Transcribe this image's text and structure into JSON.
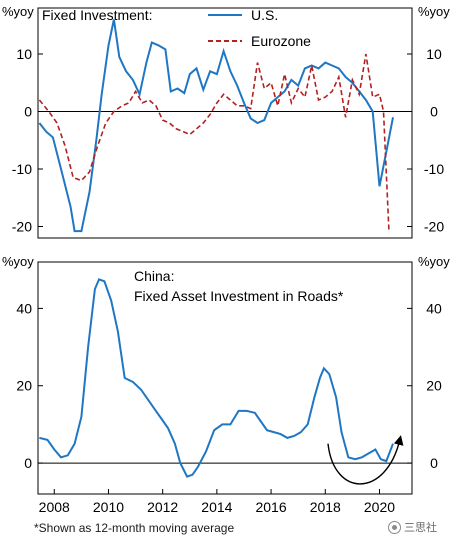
{
  "chart_data": [
    {
      "type": "line",
      "title": "Fixed Investment:",
      "ylabel_left": "%yoy",
      "ylabel_right": "%yoy",
      "ylim": [
        -22,
        18
      ],
      "yticks": [
        -20,
        -10,
        0,
        10
      ],
      "xlim": [
        2007.4,
        2021.2
      ],
      "legend": "top-center",
      "series": [
        {
          "name": "U.S.",
          "style": "solid",
          "color": "#1f77c4",
          "x": [
            2007.45,
            2007.7,
            2007.95,
            2008.25,
            2008.6,
            2008.75,
            2009.0,
            2009.3,
            2009.55,
            2009.75,
            2010.0,
            2010.2,
            2010.4,
            2010.65,
            2010.9,
            2011.15,
            2011.4,
            2011.6,
            2011.85,
            2012.1,
            2012.3,
            2012.55,
            2012.8,
            2013.0,
            2013.25,
            2013.5,
            2013.75,
            2014.0,
            2014.25,
            2014.5,
            2014.75,
            2015.0,
            2015.25,
            2015.5,
            2015.75,
            2016.0,
            2016.25,
            2016.5,
            2016.75,
            2017.0,
            2017.25,
            2017.5,
            2017.75,
            2018.0,
            2018.25,
            2018.5,
            2018.75,
            2019.0,
            2019.25,
            2019.5,
            2019.75,
            2020.0,
            2020.25,
            2020.5
          ],
          "values": [
            -2,
            -3.5,
            -4.5,
            -10,
            -16.5,
            -20.8,
            -20.8,
            -14,
            -5,
            3,
            11.5,
            16,
            9.5,
            7,
            5.5,
            3,
            8.5,
            12,
            11.5,
            10.8,
            3.5,
            4,
            3.2,
            6.5,
            7.5,
            3.8,
            7,
            6.5,
            10.5,
            7,
            4.5,
            1.5,
            -1.2,
            -2,
            -1.5,
            1.5,
            2.5,
            3.5,
            5.5,
            4.5,
            7.5,
            8,
            7.5,
            8.5,
            8,
            7.5,
            6,
            5,
            3.5,
            2,
            0,
            -13,
            -7,
            -1
          ]
        },
        {
          "name": "Eurozone",
          "style": "dashed",
          "color": "#b22222",
          "x": [
            2007.45,
            2007.8,
            2008.1,
            2008.4,
            2008.7,
            2009.0,
            2009.3,
            2009.6,
            2009.9,
            2010.2,
            2010.5,
            2010.75,
            2011.0,
            2011.25,
            2011.5,
            2011.75,
            2012.0,
            2012.25,
            2012.5,
            2012.75,
            2013.0,
            2013.25,
            2013.5,
            2013.75,
            2014.0,
            2014.25,
            2014.5,
            2014.75,
            2015.0,
            2015.25,
            2015.5,
            2015.75,
            2016.0,
            2016.25,
            2016.5,
            2016.75,
            2017.0,
            2017.25,
            2017.5,
            2017.75,
            2018.0,
            2018.25,
            2018.5,
            2018.75,
            2019.0,
            2019.25,
            2019.5,
            2019.75,
            2020.0,
            2020.15,
            2020.35
          ],
          "values": [
            2,
            0,
            -2,
            -6,
            -11.5,
            -12,
            -10.5,
            -6,
            -2,
            0,
            1,
            1.5,
            3.5,
            1.5,
            2,
            1,
            -1.5,
            -2,
            -3,
            -3.5,
            -4,
            -3,
            -2,
            -0.5,
            1.5,
            3,
            2,
            1,
            1,
            0.5,
            8.5,
            4,
            5,
            1,
            6.5,
            1.5,
            4,
            2.5,
            8,
            2,
            2.5,
            3.5,
            6,
            -1,
            5.5,
            3,
            10,
            2.5,
            3,
            0,
            -21
          ]
        }
      ]
    },
    {
      "type": "line",
      "title": "China:",
      "subtitle": "Fixed Asset Investment in Roads*",
      "ylabel_left": "%yoy",
      "ylabel_right": "%yoy",
      "ylim": [
        -8,
        52
      ],
      "yticks": [
        0,
        20,
        40
      ],
      "xlim": [
        2007.4,
        2021.2
      ],
      "xticks": [
        2008,
        2010,
        2012,
        2014,
        2016,
        2018,
        2020
      ],
      "series": [
        {
          "style": "solid",
          "color": "#1f77c4",
          "x": [
            2007.45,
            2007.75,
            2008.0,
            2008.25,
            2008.5,
            2008.75,
            2009.0,
            2009.25,
            2009.5,
            2009.65,
            2009.85,
            2010.1,
            2010.35,
            2010.6,
            2010.9,
            2011.2,
            2011.5,
            2011.8,
            2012.0,
            2012.2,
            2012.45,
            2012.65,
            2012.9,
            2013.1,
            2013.3,
            2013.6,
            2013.9,
            2014.2,
            2014.5,
            2014.8,
            2015.1,
            2015.4,
            2015.6,
            2015.85,
            2016.1,
            2016.35,
            2016.6,
            2016.85,
            2017.1,
            2017.35,
            2017.6,
            2017.8,
            2017.95,
            2018.15,
            2018.4,
            2018.6,
            2018.85,
            2019.1,
            2019.35,
            2019.6,
            2019.85,
            2020.05,
            2020.25,
            2020.5
          ],
          "values": [
            6.5,
            6,
            3.5,
            1.5,
            2,
            5,
            12,
            30,
            45,
            47.5,
            47,
            42,
            34,
            22,
            21,
            19,
            16,
            13,
            11,
            9,
            5,
            0,
            -3.5,
            -3,
            -1,
            3,
            8.5,
            10,
            10,
            13.5,
            13.5,
            13,
            11,
            8.5,
            8,
            7.5,
            6.5,
            7,
            8,
            10,
            17,
            22,
            24.5,
            23,
            17,
            8,
            1.5,
            1,
            1.5,
            2.5,
            3.5,
            1,
            0.5,
            5
          ]
        }
      ],
      "annotations": [
        {
          "kind": "curved-arrow",
          "description": "U-shaped recovery arrow",
          "x_from": 2018.1,
          "x_to": 2020.75
        }
      ]
    }
  ],
  "footnote": "*Shown as 12-month moving average",
  "watermark": "三思社"
}
